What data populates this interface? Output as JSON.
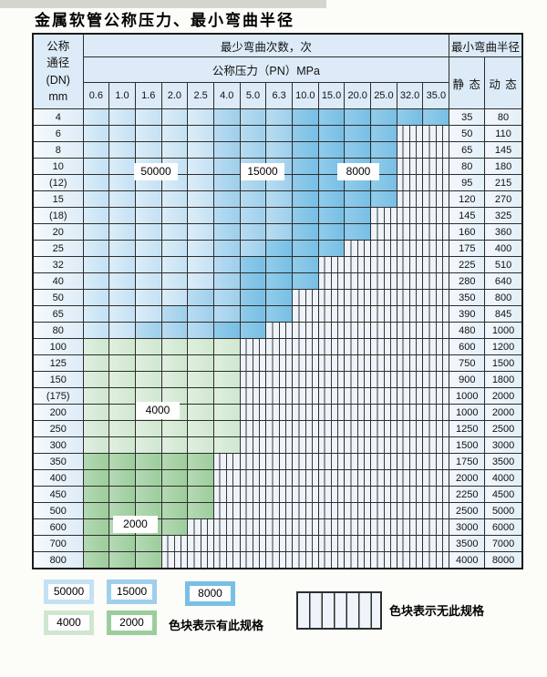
{
  "title": "金属软管公称压力、最小弯曲半径",
  "colors": {
    "c50000": "#c4e1f4",
    "c15000": "#9ecfec",
    "c8000": "#77bfe5",
    "c4000": "#cfe7cf",
    "c2000": "#9ccd9c",
    "header_bg": "#dcebf7",
    "hatch_bg": "#eef4f9"
  },
  "table": {
    "header": {
      "dn_lines": [
        "公称",
        "通径",
        "(DN)",
        "mm"
      ],
      "bend_cycles": "最少弯曲次数，次",
      "pressure": "公称压力（PN）MPa",
      "min_bend_radius": "最小弯曲半径",
      "static_label": "静 态",
      "dynamic_label": "动 态",
      "pressures": [
        "0.6",
        "1.0",
        "1.6",
        "2.0",
        "2.5",
        "4.0",
        "5.0",
        "6.3",
        "10.0",
        "15.0",
        "20.0",
        "25.0",
        "32.0",
        "35.0"
      ]
    },
    "zone_note": "zones = [cssClass, columnCount] from pressure 0.6 upward; remaining of 14 columns are hatched (no spec)",
    "rows": [
      {
        "dn": "4",
        "zones": [
          [
            "z50",
            5
          ],
          [
            "z15",
            3
          ],
          [
            "z80",
            6
          ]
        ],
        "static": "35",
        "dynamic": "80"
      },
      {
        "dn": "6",
        "zones": [
          [
            "z50",
            5
          ],
          [
            "z15",
            3
          ],
          [
            "z80",
            4
          ]
        ],
        "static": "50",
        "dynamic": "110"
      },
      {
        "dn": "8",
        "zones": [
          [
            "z50",
            5
          ],
          [
            "z15",
            3
          ],
          [
            "z80",
            4
          ]
        ],
        "static": "65",
        "dynamic": "145"
      },
      {
        "dn": "10",
        "zones": [
          [
            "z50",
            5
          ],
          [
            "z15",
            3
          ],
          [
            "z80",
            4
          ]
        ],
        "static": "80",
        "dynamic": "180"
      },
      {
        "dn": "(12)",
        "zones": [
          [
            "z50",
            5
          ],
          [
            "z15",
            3
          ],
          [
            "z80",
            4
          ]
        ],
        "static": "95",
        "dynamic": "215"
      },
      {
        "dn": "15",
        "zones": [
          [
            "z50",
            5
          ],
          [
            "z15",
            3
          ],
          [
            "z80",
            4
          ]
        ],
        "static": "120",
        "dynamic": "270"
      },
      {
        "dn": "(18)",
        "zones": [
          [
            "z50",
            5
          ],
          [
            "z15",
            3
          ],
          [
            "z80",
            3
          ]
        ],
        "static": "145",
        "dynamic": "325"
      },
      {
        "dn": "20",
        "zones": [
          [
            "z50",
            5
          ],
          [
            "z15",
            3
          ],
          [
            "z80",
            3
          ]
        ],
        "static": "160",
        "dynamic": "360"
      },
      {
        "dn": "25",
        "zones": [
          [
            "z50",
            5
          ],
          [
            "z15",
            2
          ],
          [
            "z80",
            3
          ]
        ],
        "static": "175",
        "dynamic": "400"
      },
      {
        "dn": "32",
        "zones": [
          [
            "z50",
            5
          ],
          [
            "z15",
            1
          ],
          [
            "z80",
            3
          ]
        ],
        "static": "225",
        "dynamic": "510"
      },
      {
        "dn": "40",
        "zones": [
          [
            "z50",
            5
          ],
          [
            "z15",
            1
          ],
          [
            "z80",
            3
          ]
        ],
        "static": "280",
        "dynamic": "640"
      },
      {
        "dn": "50",
        "zones": [
          [
            "z50",
            4
          ],
          [
            "z15",
            2
          ],
          [
            "z80",
            2
          ]
        ],
        "static": "350",
        "dynamic": "800"
      },
      {
        "dn": "65",
        "zones": [
          [
            "z50",
            3
          ],
          [
            "z15",
            3
          ],
          [
            "z80",
            2
          ]
        ],
        "static": "390",
        "dynamic": "845"
      },
      {
        "dn": "80",
        "zones": [
          [
            "z50",
            2
          ],
          [
            "z15",
            3
          ],
          [
            "z80",
            2
          ]
        ],
        "static": "480",
        "dynamic": "1000"
      },
      {
        "dn": "100",
        "zones": [
          [
            "g40",
            6
          ]
        ],
        "static": "600",
        "dynamic": "1200"
      },
      {
        "dn": "125",
        "zones": [
          [
            "g40",
            6
          ]
        ],
        "static": "750",
        "dynamic": "1500"
      },
      {
        "dn": "150",
        "zones": [
          [
            "g40",
            6
          ]
        ],
        "static": "900",
        "dynamic": "1800"
      },
      {
        "dn": "(175)",
        "zones": [
          [
            "g40",
            6
          ]
        ],
        "static": "1000",
        "dynamic": "2000"
      },
      {
        "dn": "200",
        "zones": [
          [
            "g40",
            6
          ]
        ],
        "static": "1000",
        "dynamic": "2000"
      },
      {
        "dn": "250",
        "zones": [
          [
            "g40",
            6
          ]
        ],
        "static": "1250",
        "dynamic": "2500"
      },
      {
        "dn": "300",
        "zones": [
          [
            "g40",
            6
          ]
        ],
        "static": "1500",
        "dynamic": "3000"
      },
      {
        "dn": "350",
        "zones": [
          [
            "g20",
            5
          ]
        ],
        "static": "1750",
        "dynamic": "3500"
      },
      {
        "dn": "400",
        "zones": [
          [
            "g20",
            5
          ]
        ],
        "static": "2000",
        "dynamic": "4000"
      },
      {
        "dn": "450",
        "zones": [
          [
            "g20",
            5
          ]
        ],
        "static": "2250",
        "dynamic": "4500"
      },
      {
        "dn": "500",
        "zones": [
          [
            "g20",
            5
          ]
        ],
        "static": "2500",
        "dynamic": "5000"
      },
      {
        "dn": "600",
        "zones": [
          [
            "g20",
            4
          ]
        ],
        "static": "3000",
        "dynamic": "6000"
      },
      {
        "dn": "700",
        "zones": [
          [
            "g20",
            3
          ]
        ],
        "static": "3500",
        "dynamic": "7000"
      },
      {
        "dn": "800",
        "zones": [
          [
            "g20",
            3
          ]
        ],
        "static": "4000",
        "dynamic": "8000"
      }
    ]
  },
  "overlays": [
    {
      "label": "50000"
    },
    {
      "label": "15000"
    },
    {
      "label": "8000"
    },
    {
      "label": "4000"
    },
    {
      "label": "2000"
    }
  ],
  "legend": {
    "items": [
      {
        "label": "50000"
      },
      {
        "label": "15000"
      },
      {
        "label": "8000"
      },
      {
        "label": "4000"
      },
      {
        "label": "2000"
      }
    ],
    "has_spec_text": "色块表示有此规格",
    "no_spec_text": "色块表示无此规格"
  }
}
